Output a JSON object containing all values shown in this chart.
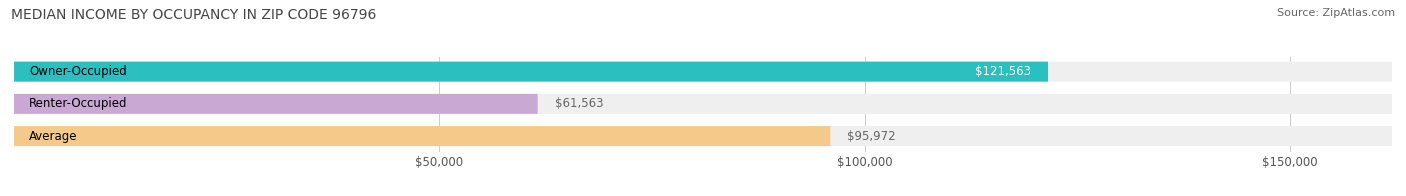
{
  "title": "MEDIAN INCOME BY OCCUPANCY IN ZIP CODE 96796",
  "source": "Source: ZipAtlas.com",
  "categories": [
    "Owner-Occupied",
    "Renter-Occupied",
    "Average"
  ],
  "values": [
    121563,
    61563,
    95972
  ],
  "labels": [
    "$121,563",
    "$61,563",
    "$95,972"
  ],
  "bar_colors": [
    "#2bbfbf",
    "#c9a8d4",
    "#f5c98a"
  ],
  "value_label_colors": [
    "#ffffff",
    "#666666",
    "#666666"
  ],
  "bar_bg_color": "#efefef",
  "xlim": [
    0,
    162000
  ],
  "xticks": [
    0,
    50000,
    100000,
    150000
  ],
  "xticklabels": [
    "",
    "$50,000",
    "$100,000",
    "$150,000"
  ],
  "title_fontsize": 10,
  "source_fontsize": 8,
  "label_fontsize": 8.5,
  "tick_fontsize": 8.5,
  "bar_height": 0.62,
  "figsize": [
    14.06,
    1.96
  ],
  "dpi": 100,
  "background_color": "#ffffff",
  "grid_color": "#cccccc"
}
